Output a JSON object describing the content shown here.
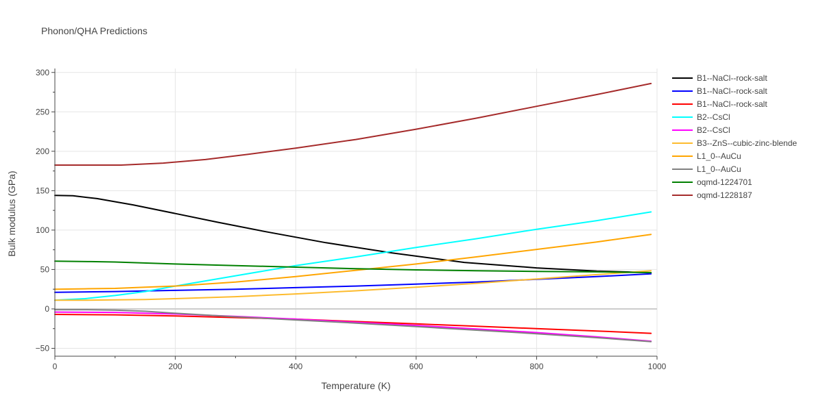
{
  "chart_data": {
    "type": "line",
    "title": "Phonon/QHA Predictions",
    "xlabel": "Temperature (K)",
    "ylabel": "Bulk modulus (GPa)",
    "xlim": [
      0,
      1000
    ],
    "ylim": [
      -60,
      305
    ],
    "xticks": [
      0,
      200,
      400,
      600,
      800,
      1000
    ],
    "yticks": [
      -50,
      0,
      50,
      100,
      150,
      200,
      250,
      300
    ],
    "grid": true,
    "legend_position": "right",
    "series": [
      {
        "name": "B1--NaCl--rock-salt",
        "color": "#000000",
        "x": [
          0,
          30,
          70,
          130,
          200,
          270,
          350,
          450,
          560,
          680,
          800,
          900,
          990
        ],
        "y": [
          144,
          143.5,
          140,
          132,
          121,
          110,
          98,
          84,
          71,
          59,
          52,
          48,
          46
        ]
      },
      {
        "name": "B1--NaCl--rock-salt",
        "color": "#0000ff",
        "x": [
          0,
          100,
          200,
          300,
          400,
          500,
          600,
          700,
          800,
          900,
          990
        ],
        "y": [
          21,
          22,
          23.5,
          25,
          27,
          29,
          31.5,
          34,
          37.5,
          41,
          44.5
        ]
      },
      {
        "name": "B1--NaCl--rock-salt",
        "color": "#ff0000",
        "x": [
          0,
          100,
          200,
          300,
          400,
          500,
          600,
          700,
          800,
          900,
          990
        ],
        "y": [
          -7,
          -7.5,
          -9,
          -11,
          -13,
          -16,
          -19,
          -22,
          -25,
          -28,
          -31
        ]
      },
      {
        "name": "B2--CsCl",
        "color": "#00ffff",
        "x": [
          0,
          50,
          100,
          150,
          200,
          300,
          400,
          500,
          600,
          700,
          800,
          900,
          990
        ],
        "y": [
          11,
          13,
          17,
          22,
          29,
          42,
          55,
          66,
          78,
          89,
          101,
          112,
          123
        ]
      },
      {
        "name": "B2--CsCl",
        "color": "#ff00ff",
        "x": [
          0,
          100,
          200,
          300,
          400,
          500,
          600,
          700,
          800,
          900,
          990
        ],
        "y": [
          -4,
          -4.5,
          -6.5,
          -9.5,
          -13,
          -17,
          -21,
          -25.5,
          -30,
          -35.5,
          -41
        ]
      },
      {
        "name": "B3--ZnS--cubic-zinc-blende",
        "color": "#fdbb2d",
        "x": [
          0,
          50,
          100,
          150,
          200,
          300,
          400,
          500,
          600,
          700,
          800,
          900,
          990
        ],
        "y": [
          11,
          11,
          11.5,
          12,
          13,
          15.5,
          19,
          23,
          27.5,
          32.5,
          38,
          43.5,
          48.5
        ]
      },
      {
        "name": "L1_0--AuCu",
        "color": "#ffa500",
        "x": [
          0,
          50,
          100,
          150,
          200,
          300,
          400,
          500,
          600,
          700,
          800,
          900,
          990
        ],
        "y": [
          25,
          25.5,
          26,
          27.5,
          29,
          34,
          41,
          49,
          57,
          66,
          75.5,
          85,
          94.5
        ]
      },
      {
        "name": "L1_0--AuCu",
        "color": "#808080",
        "x": [
          0,
          50,
          100,
          150,
          200,
          300,
          400,
          500,
          600,
          700,
          800,
          900,
          990
        ],
        "y": [
          -1,
          -1,
          -1.5,
          -3,
          -5.5,
          -10,
          -14,
          -18,
          -22.5,
          -27,
          -31.5,
          -36.5,
          -41.5
        ]
      },
      {
        "name": "oqmd-1224701",
        "color": "#008000",
        "x": [
          0,
          60,
          100,
          200,
          300,
          400,
          500,
          600,
          700,
          800,
          900,
          990
        ],
        "y": [
          60.5,
          60,
          59.5,
          57,
          55,
          53,
          51,
          49.5,
          48.5,
          47.5,
          47,
          46
        ]
      },
      {
        "name": "oqmd-1228187",
        "color": "#a52a2a",
        "x": [
          0,
          50,
          110,
          180,
          250,
          320,
          400,
          500,
          600,
          700,
          800,
          900,
          990
        ],
        "y": [
          182.5,
          182.5,
          182.5,
          185,
          189.5,
          196,
          204,
          215,
          228,
          242,
          257,
          272,
          286
        ]
      }
    ]
  }
}
